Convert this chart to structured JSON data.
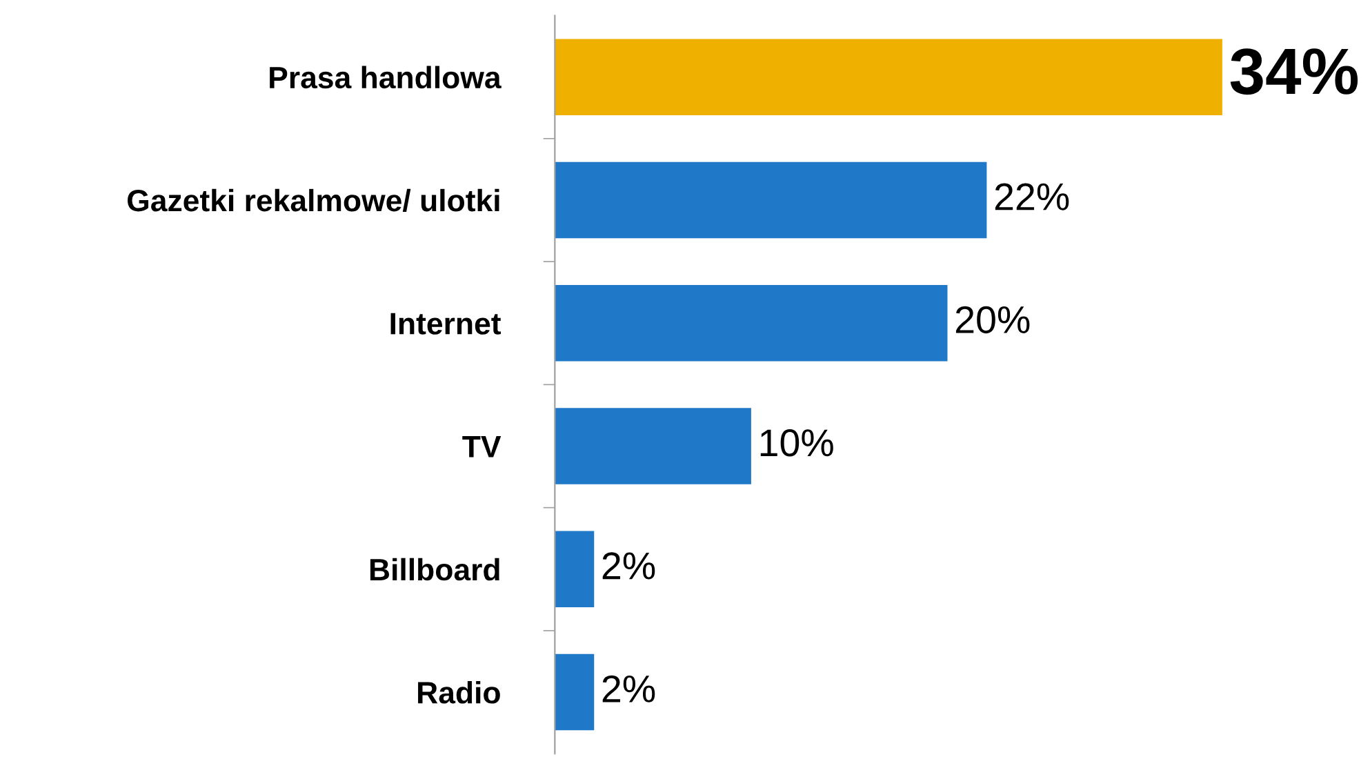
{
  "chart_data": {
    "type": "bar",
    "orientation": "horizontal",
    "categories": [
      "Prasa handlowa",
      "Gazetki rekalmowe/ ulotki",
      "Internet",
      "TV",
      "Billboard",
      "Radio"
    ],
    "values": [
      34,
      22,
      20,
      10,
      2,
      2
    ],
    "colors": [
      "#f0b000",
      "#1f78c8",
      "#1f78c8",
      "#1f78c8",
      "#1f78c8",
      "#1f78c8"
    ],
    "value_labels": [
      "34%",
      "22%",
      "20%",
      "10%",
      "2%",
      "2%"
    ],
    "grid": false,
    "legend": false
  }
}
